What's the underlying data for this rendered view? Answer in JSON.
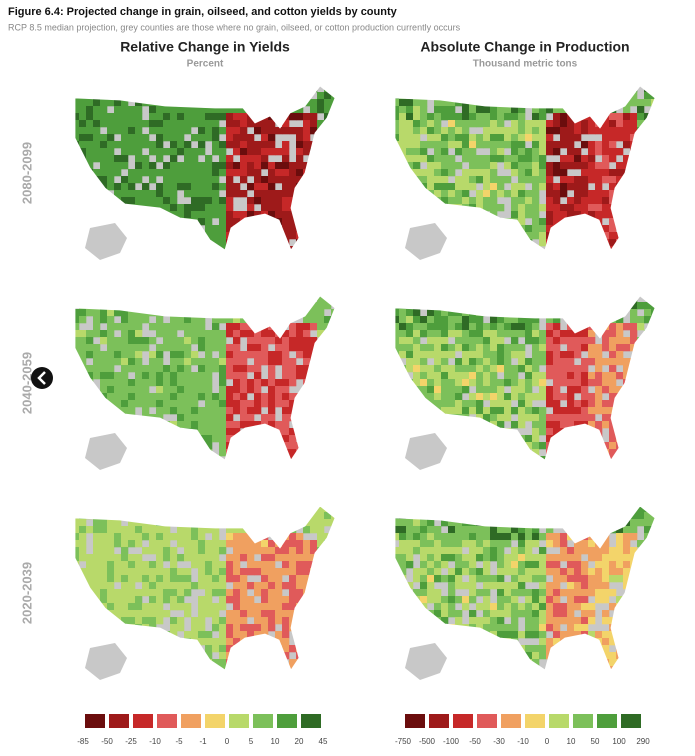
{
  "header": {
    "title": "Figure 6.4: Projected change in grain, oilseed, and cotton yields by county",
    "subtitle": "RCP 8.5 median projection, grey counties are those where no grain, oilseed, or cotton production currently occurs"
  },
  "columns": [
    {
      "title": "Relative Change in Yields",
      "subtitle": "Percent",
      "legend": {
        "labels": [
          "-85",
          "-50",
          "-25",
          "-10",
          "-5",
          "-1",
          "0",
          "5",
          "10",
          "20",
          "45"
        ],
        "colors": [
          "#6b0d0d",
          "#9e1a1a",
          "#c62828",
          "#e05a5a",
          "#f0a060",
          "#f3d46a",
          "#b8d96a",
          "#7cc05a",
          "#4e9e3c",
          "#2f6b25"
        ]
      }
    },
    {
      "title": "Absolute Change in Production",
      "subtitle": "Thousand metric tons",
      "legend": {
        "labels": [
          "-750",
          "-500",
          "-100",
          "-50",
          "-30",
          "-10",
          "0",
          "10",
          "50",
          "100",
          "290"
        ],
        "colors": [
          "#6b0d0d",
          "#9e1a1a",
          "#c62828",
          "#e05a5a",
          "#f0a060",
          "#f3d46a",
          "#b8d96a",
          "#7cc05a",
          "#4e9e3c",
          "#2f6b25"
        ]
      }
    }
  ],
  "rows": [
    "2080-2099",
    "2040-2059",
    "2020-2039"
  ]
}
